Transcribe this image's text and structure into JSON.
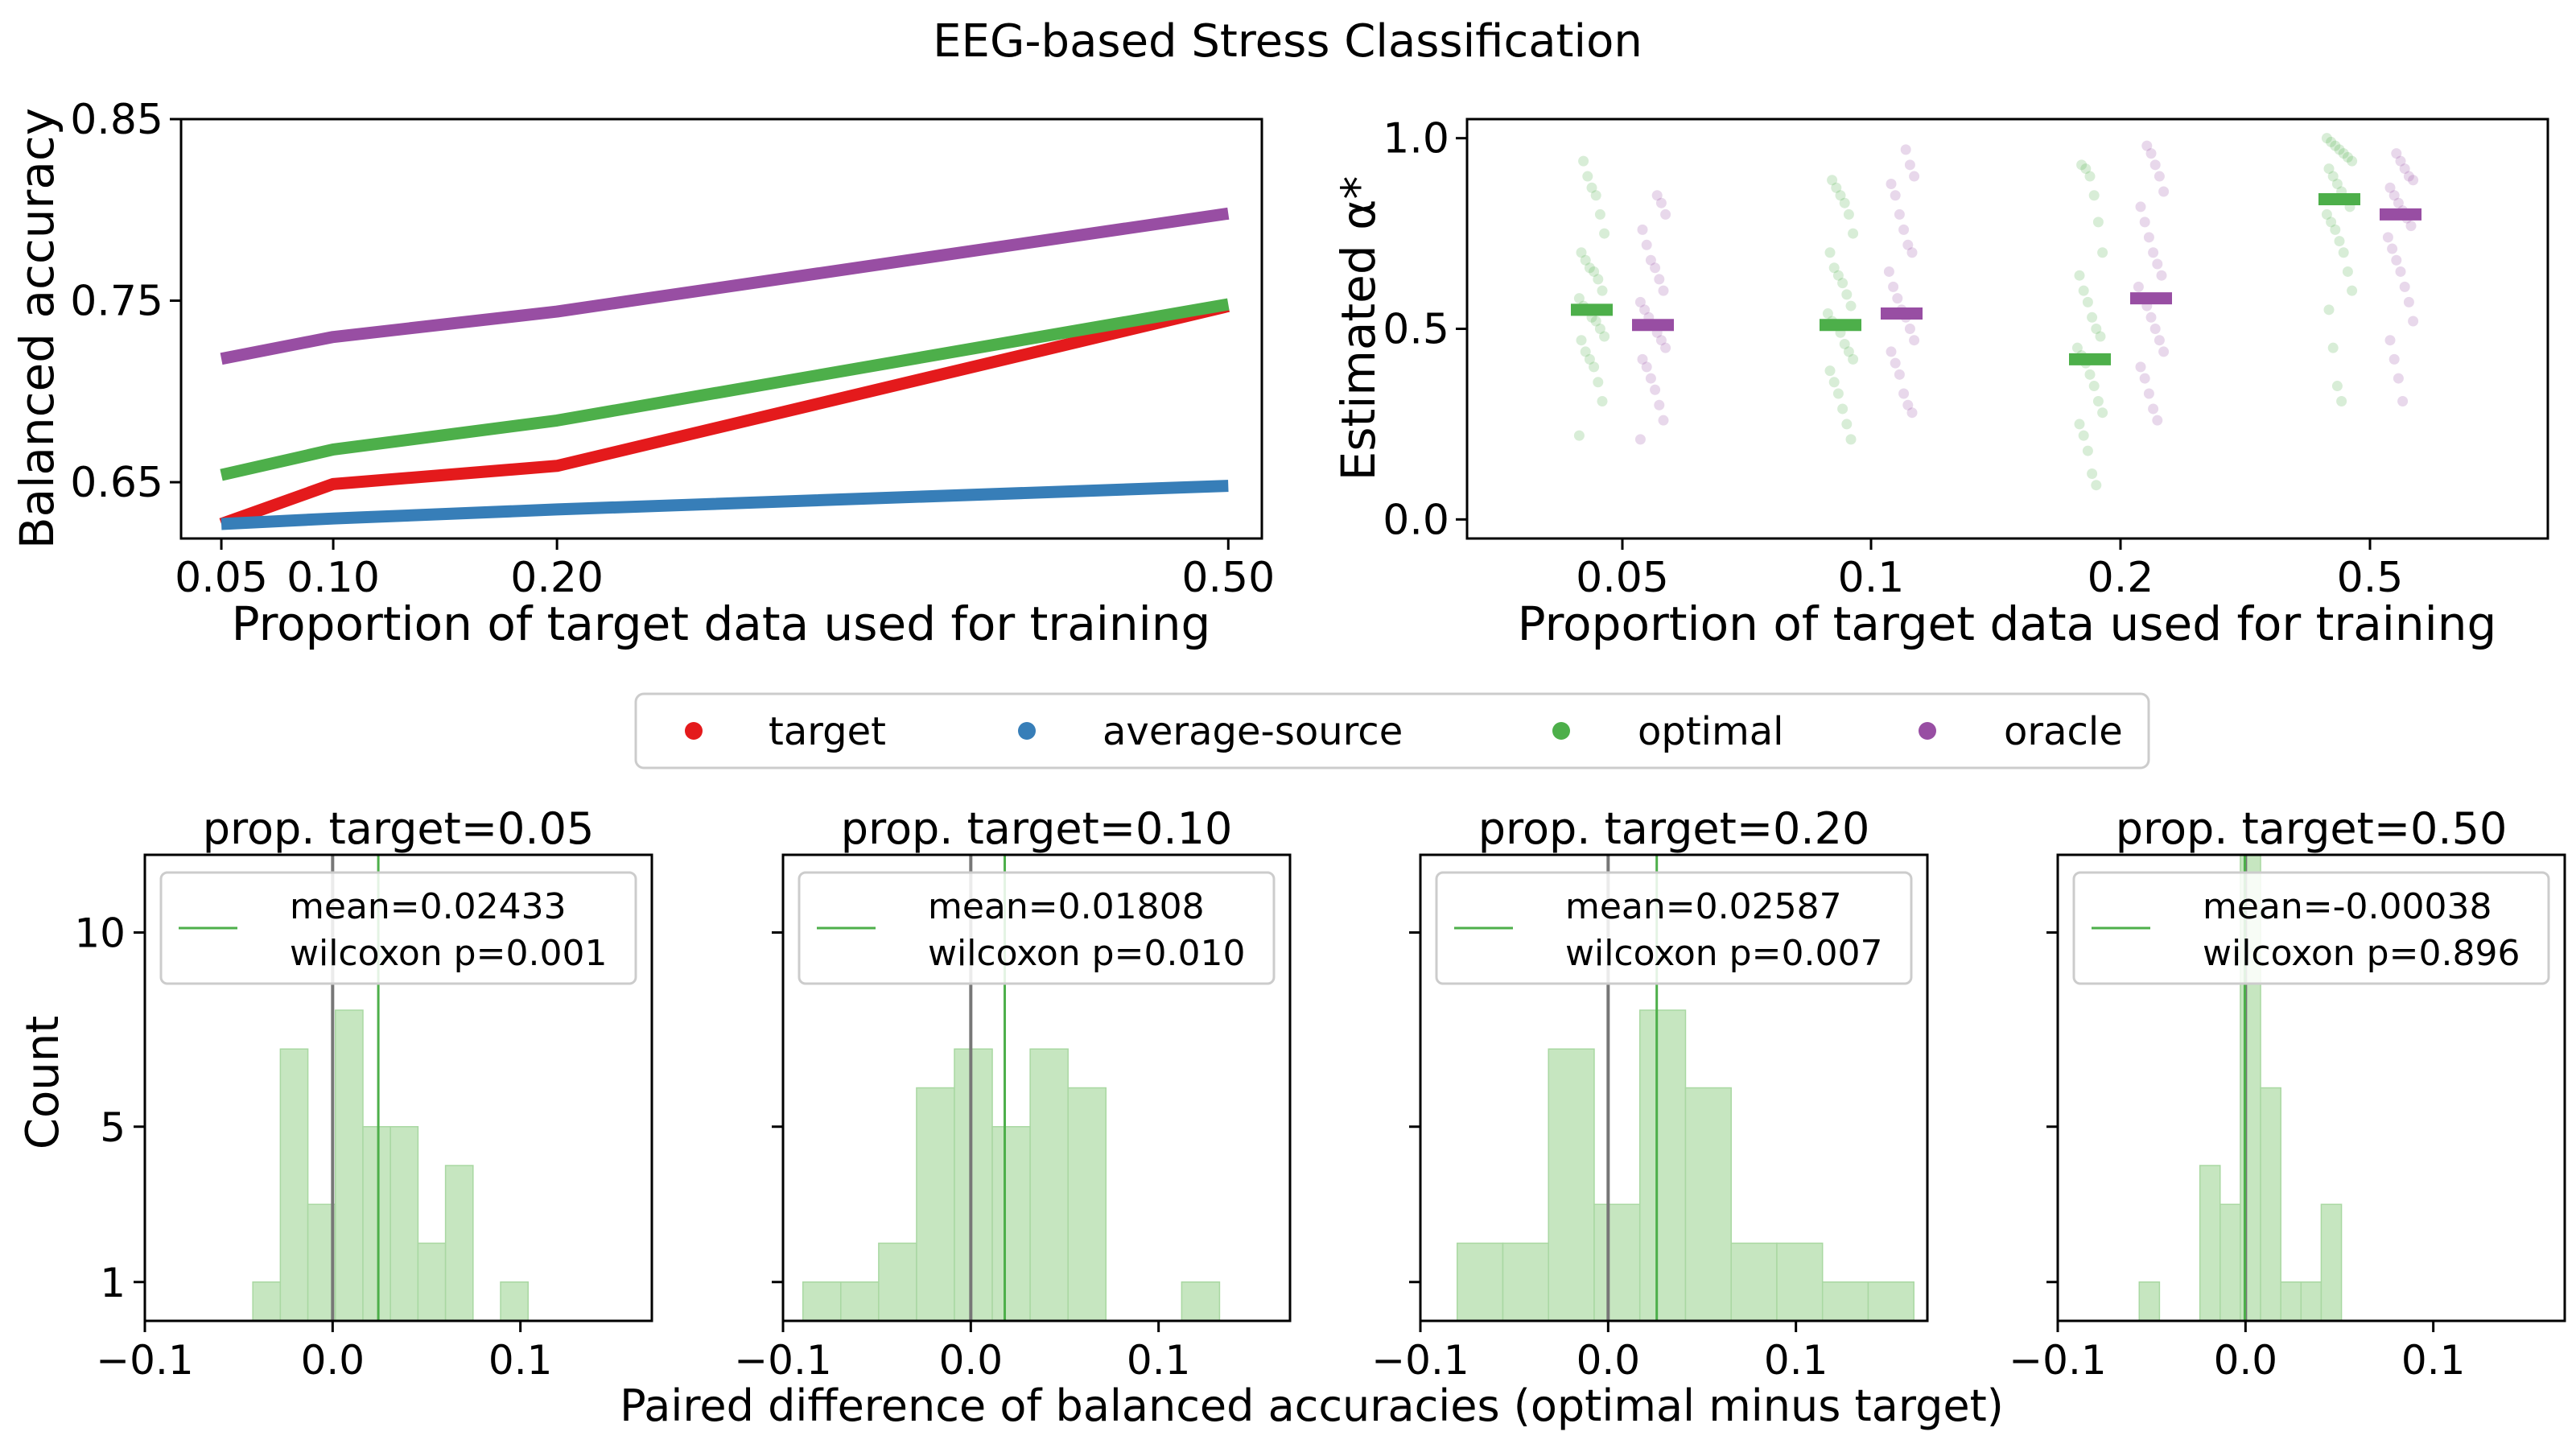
{
  "title": "EEG-based Stress Classification",
  "colors": {
    "target": "#e41a1c",
    "average_source": "#377eb8",
    "optimal": "#4daf4a",
    "oracle": "#984ea3",
    "hist_fill": "#c6e6c0",
    "hist_edge": "#a9d8a2",
    "zero_line": "#777777"
  },
  "legend": {
    "items": [
      {
        "key": "target",
        "label": "target"
      },
      {
        "key": "average_source",
        "label": "average-source"
      },
      {
        "key": "optimal",
        "label": "optimal"
      },
      {
        "key": "oracle",
        "label": "oracle"
      }
    ]
  },
  "bottom_xlabel": "Paired difference of balanced accuracies (optimal minus target)",
  "chart_data": [
    {
      "type": "line",
      "xlabel": "Proportion of target data used for training",
      "ylabel": "Balanced accuracy",
      "x": [
        0.05,
        0.1,
        0.2,
        0.5
      ],
      "xticks": [
        0.05,
        0.1,
        0.2,
        0.5
      ],
      "xtick_labels": [
        "0.05",
        "0.10",
        "0.20",
        "0.50"
      ],
      "yticks": [
        0.65,
        0.75,
        0.85
      ],
      "ytick_labels": [
        "0.65",
        "0.75",
        "0.85"
      ],
      "xlim": [
        0.032,
        0.515
      ],
      "ylim": [
        0.619,
        0.85
      ],
      "series": [
        {
          "name": "target",
          "color_key": "target",
          "values": [
            0.627,
            0.649,
            0.659,
            0.747
          ]
        },
        {
          "name": "average-source",
          "color_key": "average_source",
          "values": [
            0.627,
            0.63,
            0.635,
            0.648
          ]
        },
        {
          "name": "optimal",
          "color_key": "optimal",
          "values": [
            0.654,
            0.668,
            0.684,
            0.748
          ]
        },
        {
          "name": "oracle",
          "color_key": "oracle",
          "values": [
            0.718,
            0.73,
            0.744,
            0.798
          ]
        }
      ]
    },
    {
      "type": "scatter",
      "xlabel": "Proportion of target data used for training",
      "ylabel": "Estimated α*",
      "categories": [
        "0.05",
        "0.1",
        "0.2",
        "0.5"
      ],
      "yticks": [
        0.0,
        0.5,
        1.0
      ],
      "ytick_labels": [
        "0.0",
        "0.5",
        "1.0"
      ],
      "ylim": [
        -0.05,
        1.05
      ],
      "series": [
        {
          "name": "optimal",
          "color_key": "optimal",
          "means": [
            0.55,
            0.51,
            0.42,
            0.84
          ],
          "points": [
            [
              0.22,
              0.31,
              0.36,
              0.4,
              0.42,
              0.44,
              0.47,
              0.48,
              0.5,
              0.52,
              0.53,
              0.55,
              0.56,
              0.58,
              0.6,
              0.63,
              0.65,
              0.66,
              0.68,
              0.7,
              0.75,
              0.8,
              0.85,
              0.87,
              0.9,
              0.94
            ],
            [
              0.21,
              0.25,
              0.29,
              0.33,
              0.36,
              0.39,
              0.42,
              0.44,
              0.46,
              0.49,
              0.51,
              0.52,
              0.54,
              0.56,
              0.59,
              0.62,
              0.64,
              0.66,
              0.7,
              0.75,
              0.8,
              0.83,
              0.85,
              0.87,
              0.89
            ],
            [
              0.09,
              0.12,
              0.18,
              0.22,
              0.25,
              0.28,
              0.31,
              0.35,
              0.38,
              0.41,
              0.43,
              0.45,
              0.48,
              0.5,
              0.53,
              0.57,
              0.6,
              0.64,
              0.7,
              0.78,
              0.85,
              0.9,
              0.92,
              0.93
            ],
            [
              0.31,
              0.35,
              0.45,
              0.55,
              0.6,
              0.65,
              0.7,
              0.73,
              0.76,
              0.78,
              0.8,
              0.82,
              0.84,
              0.86,
              0.88,
              0.9,
              0.92,
              0.94,
              0.95,
              0.96,
              0.97,
              0.98,
              0.99,
              1.0
            ]
          ]
        },
        {
          "name": "oracle",
          "color_key": "oracle",
          "means": [
            0.51,
            0.54,
            0.58,
            0.8
          ],
          "points": [
            [
              0.21,
              0.26,
              0.3,
              0.34,
              0.37,
              0.4,
              0.42,
              0.45,
              0.47,
              0.49,
              0.51,
              0.53,
              0.55,
              0.57,
              0.6,
              0.63,
              0.66,
              0.68,
              0.72,
              0.76,
              0.8,
              0.83,
              0.85
            ],
            [
              0.28,
              0.3,
              0.33,
              0.38,
              0.41,
              0.44,
              0.47,
              0.5,
              0.53,
              0.55,
              0.58,
              0.61,
              0.65,
              0.7,
              0.72,
              0.76,
              0.8,
              0.85,
              0.88,
              0.9,
              0.93,
              0.97
            ],
            [
              0.26,
              0.29,
              0.33,
              0.37,
              0.4,
              0.44,
              0.47,
              0.5,
              0.53,
              0.56,
              0.58,
              0.61,
              0.64,
              0.67,
              0.7,
              0.74,
              0.78,
              0.82,
              0.86,
              0.9,
              0.93,
              0.96,
              0.98
            ],
            [
              0.31,
              0.37,
              0.42,
              0.47,
              0.52,
              0.57,
              0.61,
              0.65,
              0.68,
              0.71,
              0.74,
              0.77,
              0.79,
              0.81,
              0.83,
              0.85,
              0.87,
              0.89,
              0.9,
              0.92,
              0.94,
              0.96
            ]
          ]
        }
      ]
    },
    {
      "type": "bar",
      "title": "prop. target=0.05",
      "ylabel": "Count",
      "xlim": [
        -0.1,
        0.17
      ],
      "ylim": [
        0,
        12
      ],
      "xticks": [
        -0.1,
        0.0,
        0.1
      ],
      "xtick_labels": [
        "−0.1",
        "0.0",
        "0.1"
      ],
      "yticks": [
        1,
        5,
        10
      ],
      "ytick_labels": [
        "1",
        "5",
        "10"
      ],
      "bin_start": -0.0425,
      "bin_width": 0.01466,
      "values": [
        1,
        7,
        3,
        8,
        5,
        5,
        2,
        4,
        0,
        1
      ],
      "mean_line": 0.02433,
      "legend_text": [
        "mean=0.02433",
        "wilcoxon p=0.001"
      ]
    },
    {
      "type": "bar",
      "title": "prop. target=0.10",
      "xlim": [
        -0.1,
        0.17
      ],
      "ylim": [
        0,
        12
      ],
      "xticks": [
        -0.1,
        0.0,
        0.1
      ],
      "xtick_labels": [
        "−0.1",
        "0.0",
        "0.1"
      ],
      "yticks": [
        1,
        5,
        10
      ],
      "bin_start": -0.0894,
      "bin_width": 0.02017,
      "values": [
        1,
        1,
        2,
        6,
        7,
        5,
        7,
        6,
        0,
        0,
        1
      ],
      "mean_line": 0.01808,
      "legend_text": [
        "mean=0.01808",
        "wilcoxon p=0.010"
      ]
    },
    {
      "type": "bar",
      "title": "prop. target=0.20",
      "xlim": [
        -0.1,
        0.17
      ],
      "ylim": [
        0,
        12
      ],
      "xticks": [
        -0.1,
        0.0,
        0.1
      ],
      "xtick_labels": [
        "−0.1",
        "0.0",
        "0.1"
      ],
      "yticks": [
        1,
        5,
        10
      ],
      "bin_start": -0.0804,
      "bin_width": 0.02432,
      "values": [
        2,
        2,
        7,
        3,
        8,
        6,
        2,
        2,
        1,
        1
      ],
      "mean_line": 0.02587,
      "legend_text": [
        "mean=0.02587",
        "wilcoxon p=0.007"
      ]
    },
    {
      "type": "bar",
      "title": "prop. target=0.50",
      "xlim": [
        -0.1,
        0.17
      ],
      "ylim": [
        0,
        12
      ],
      "xticks": [
        -0.1,
        0.0,
        0.1
      ],
      "xtick_labels": [
        "−0.1",
        "0.0",
        "0.1"
      ],
      "yticks": [
        1,
        5,
        10
      ],
      "bin_start": -0.0566,
      "bin_width": 0.01077,
      "values": [
        1,
        0,
        0,
        4,
        3,
        12,
        6,
        1,
        1,
        3
      ],
      "mean_line": -0.00038,
      "legend_text": [
        "mean=-0.00038",
        "wilcoxon p=0.896"
      ]
    }
  ]
}
